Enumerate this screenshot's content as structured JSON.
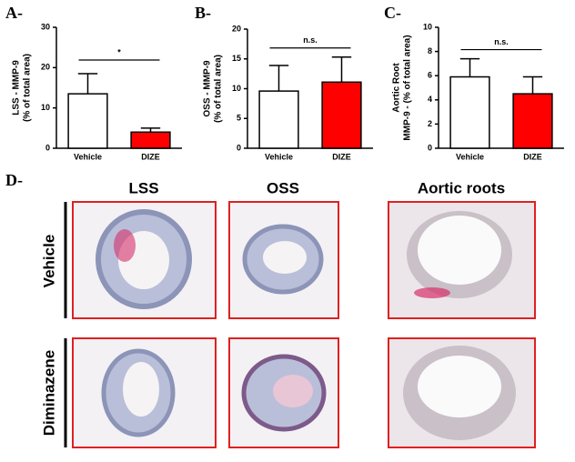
{
  "chart_data": [
    {
      "type": "bar",
      "panel_label": "A-",
      "ylabel": [
        "LSS - MMP-9",
        "(% of total area)"
      ],
      "categories": [
        "Vehicle",
        "DIZE"
      ],
      "values": [
        13.5,
        4
      ],
      "errors": [
        5,
        1
      ],
      "colors": [
        "#ffffff",
        "#ff0000"
      ],
      "ylim": [
        0,
        30
      ],
      "yticks": [
        0,
        10,
        20,
        30
      ],
      "annotation": "*"
    },
    {
      "type": "bar",
      "panel_label": "B-",
      "ylabel": [
        "OSS - MMP-9",
        "(% of total area)"
      ],
      "categories": [
        "Vehicle",
        "DIZE"
      ],
      "values": [
        9.6,
        11.1
      ],
      "errors": [
        4.3,
        4.2
      ],
      "colors": [
        "#ffffff",
        "#ff0000"
      ],
      "ylim": [
        0,
        20
      ],
      "yticks": [
        0,
        5,
        10,
        15,
        20
      ],
      "annotation": "n.s."
    },
    {
      "type": "bar",
      "panel_label": "C-",
      "ylabel": [
        "Aortic Root",
        "MMP-9 - (% of total area)"
      ],
      "categories": [
        "Vehicle",
        "DIZE"
      ],
      "values": [
        5.9,
        4.5
      ],
      "errors": [
        1.5,
        1.4
      ],
      "colors": [
        "#ffffff",
        "#ff0000"
      ],
      "ylim": [
        0,
        10
      ],
      "yticks": [
        0,
        2,
        4,
        6,
        8,
        10
      ],
      "annotation": "n.s."
    }
  ],
  "panel_d": {
    "label": "D-",
    "columns": [
      "LSS",
      "OSS",
      "Aortic roots"
    ],
    "rows": [
      "Vehicle",
      "Diminazene"
    ]
  }
}
